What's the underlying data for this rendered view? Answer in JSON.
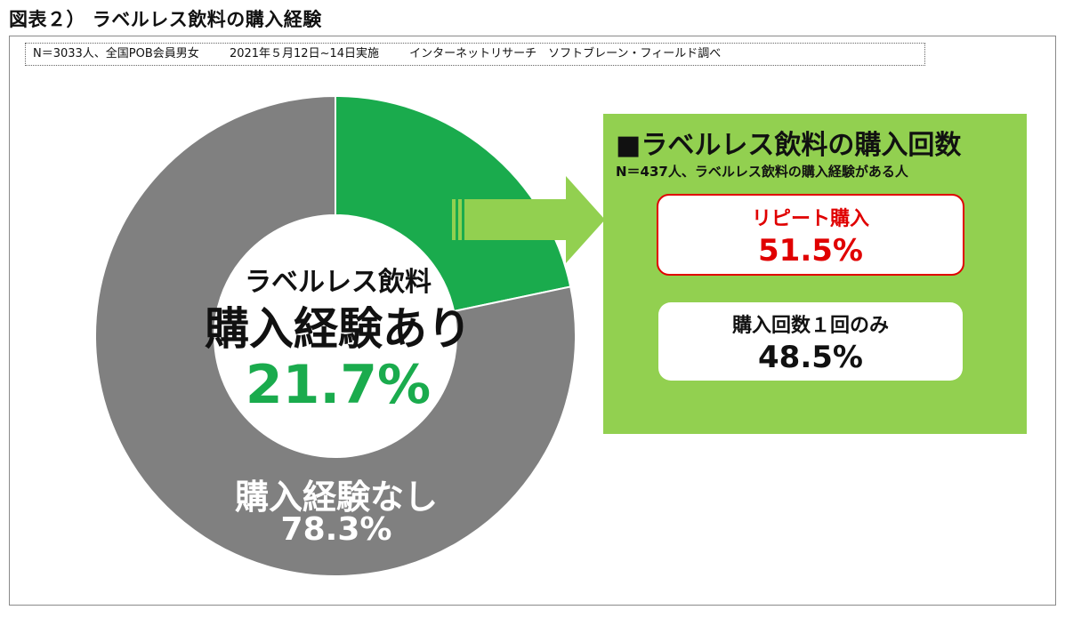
{
  "title": "図表２） ラベルレス飲料の購入経験",
  "note": {
    "sample": "N＝3033人、全国POB会員男女",
    "period": "2021年５月12日~14日実施",
    "source": "インターネットリサーチ　ソフトブレーン・フィールド調べ"
  },
  "colors": {
    "yes": "#1aab4d",
    "no": "#808080",
    "panel": "#92d050",
    "repeat": "#e00000"
  },
  "chart_data": [
    {
      "type": "pie",
      "title": "",
      "categories": [
        "購入経験あり",
        "購入経験なし"
      ],
      "values": [
        21.7,
        78.3
      ],
      "unit": "%",
      "labels": {
        "yes_sub": "ラベルレス飲料",
        "yes_main": "購入経験あり",
        "yes_value": "21.7%",
        "no_main": "購入経験なし",
        "no_value": "78.3%"
      }
    },
    {
      "type": "table",
      "title": "■ラベルレス飲料の購入回数",
      "subtitle": "N＝437人、ラベルレス飲料の購入経験がある人",
      "categories": [
        "リピート購入",
        "購入回数１回のみ"
      ],
      "values": [
        51.5,
        48.5
      ],
      "value_labels": [
        "51.5%",
        "48.5%"
      ],
      "unit": "%"
    }
  ]
}
